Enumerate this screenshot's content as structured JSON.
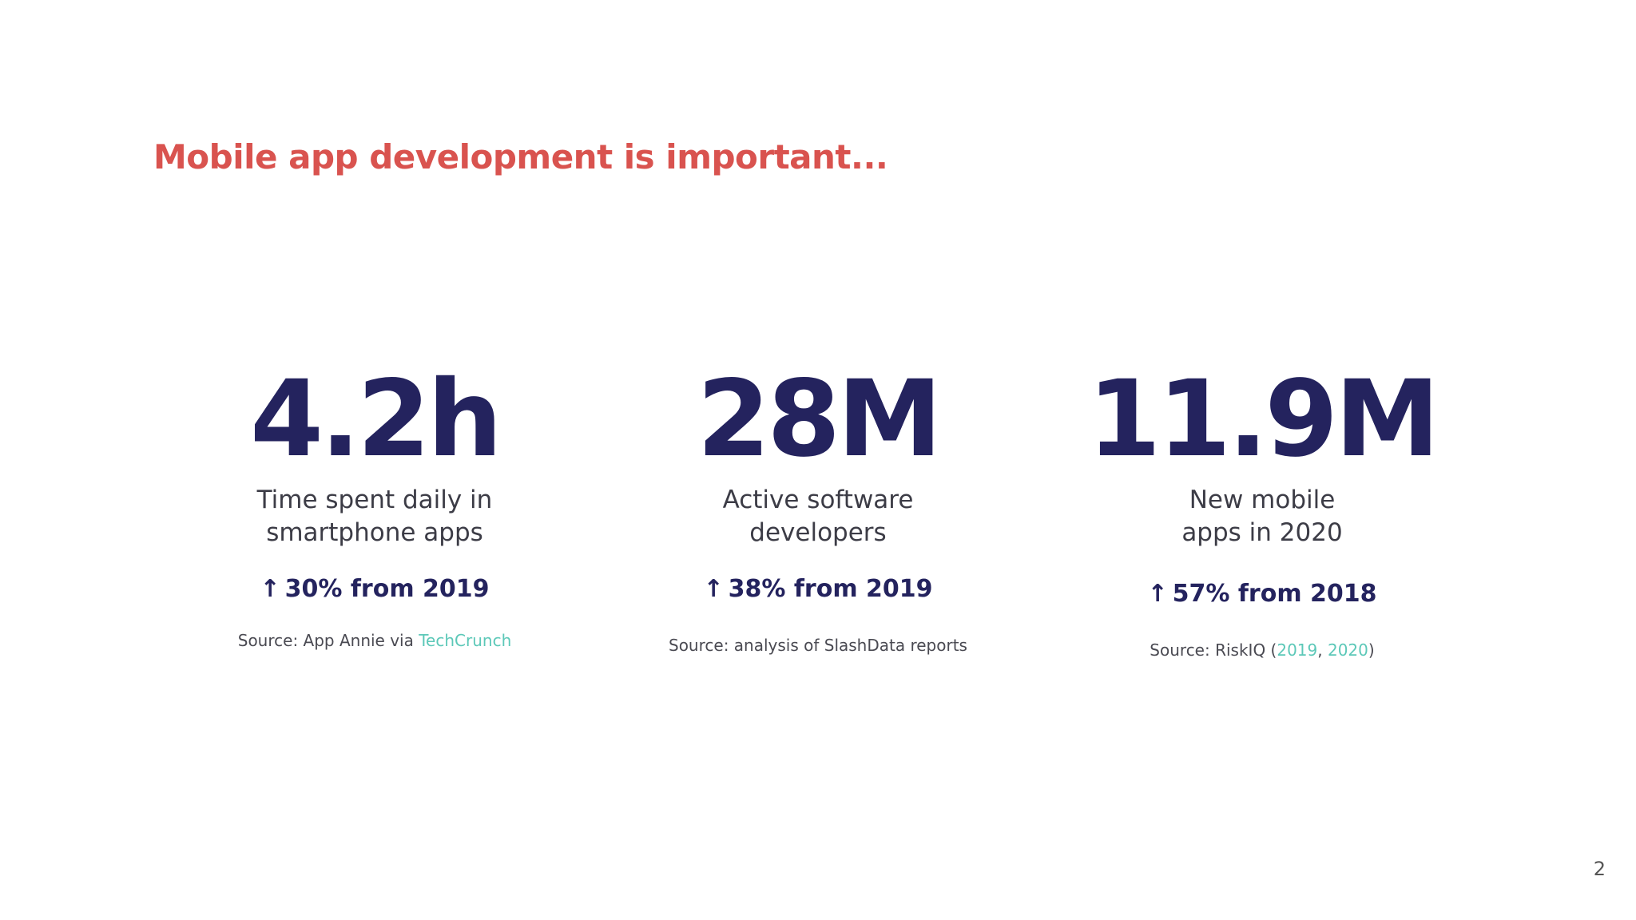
{
  "slide": {
    "title": "Mobile app development is important...",
    "page_number": "2",
    "colors": {
      "title": "#d9534f",
      "stat_value": "#24235e",
      "link": "#5cc8b8"
    },
    "stats": [
      {
        "value": "4.2h",
        "description": "Time spent daily in\nsmartphone apps",
        "arrow_icon": "up-arrow-icon",
        "growth": "30% from 2019",
        "source_prefix": "Source: App Annie via ",
        "source_link": "TechCrunch"
      },
      {
        "value": "28M",
        "description": "Active software\ndevelopers",
        "arrow_icon": "up-arrow-icon",
        "growth": "38% from 2019",
        "source_prefix": "Source: analysis of SlashData reports"
      },
      {
        "value": "11.9M",
        "description": "New mobile\napps in 2020",
        "arrow_icon": "up-arrow-icon",
        "growth": "57% from 2018",
        "source_prefix": "Source: RiskIQ (",
        "source_link_1": "2019",
        "source_separator": ", ",
        "source_link_2": "2020",
        "source_suffix": ")"
      }
    ]
  }
}
